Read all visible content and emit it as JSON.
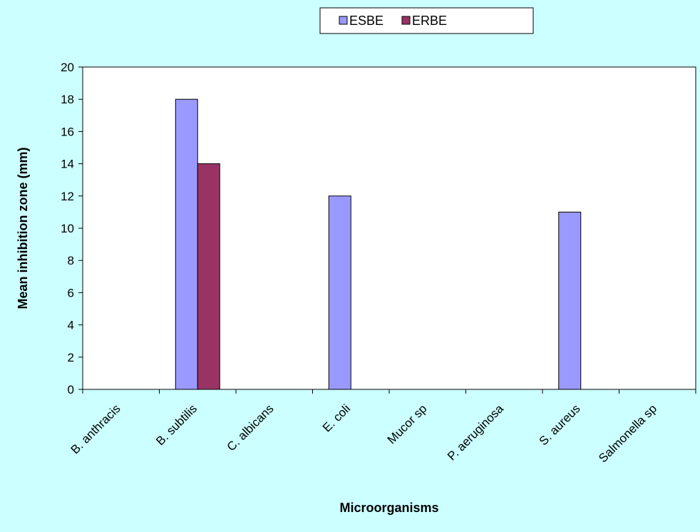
{
  "chart_data": {
    "type": "bar",
    "categories": [
      "B. anthracis",
      "B. subtilis",
      "C. albicans",
      "E. coli",
      "Mucor sp",
      "P. aeruginosa",
      "S. aureus",
      "Salmonella sp"
    ],
    "series": [
      {
        "name": "ESBE",
        "color": "#9999ff",
        "values": [
          0,
          18,
          0,
          12,
          0,
          0,
          11,
          0
        ]
      },
      {
        "name": "ERBE",
        "color": "#993366",
        "values": [
          0,
          14,
          0,
          0,
          0,
          0,
          0,
          0
        ]
      }
    ],
    "xlabel": "Microorganisms",
    "ylabel": "Mean inhibition zone (mm)",
    "ylim": [
      0,
      20
    ],
    "ytick_step": 2,
    "legend_position": "top",
    "grid": false,
    "background_color": "#ccffff",
    "plot_background_color": "#ffffff"
  }
}
